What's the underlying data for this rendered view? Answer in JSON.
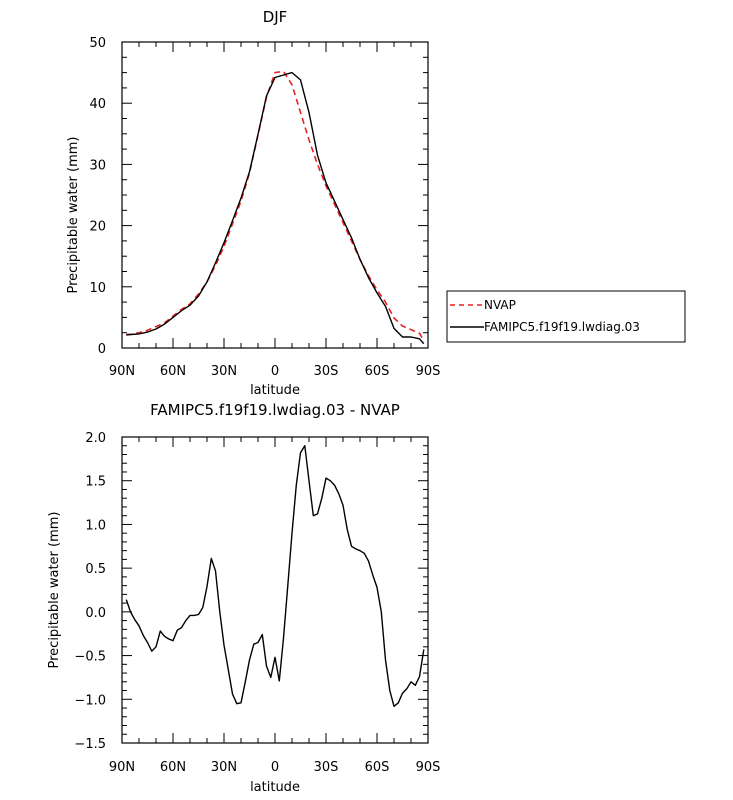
{
  "chart_data": [
    {
      "type": "line",
      "title": "DJF",
      "xlabel": "latitude",
      "ylabel": "Precipitable water (mm)",
      "xlim": [
        -90,
        90
      ],
      "ylim": [
        0,
        50
      ],
      "x_tick_labels": [
        "90N",
        "60N",
        "30N",
        "0",
        "30S",
        "60S",
        "90S"
      ],
      "y_tick_labels": [
        "0",
        "10",
        "20",
        "30",
        "40",
        "50"
      ],
      "legend": "right",
      "series": [
        {
          "name": "NVAP",
          "color": "#e8201f",
          "style": "dashed",
          "x": [
            -87.5,
            -85,
            -80,
            -75,
            -70,
            -65,
            -60,
            -55,
            -50,
            -45,
            -40,
            -35,
            -30,
            -25,
            -20,
            -15,
            -10,
            -5,
            0,
            5,
            10,
            15,
            20,
            25,
            30,
            35,
            40,
            45,
            50,
            55,
            60,
            65,
            70,
            75,
            80,
            85,
            87.5
          ],
          "y": [
            2.1,
            2.2,
            2.5,
            2.9,
            3.5,
            4.1,
            5.2,
            6.3,
            7.2,
            8.8,
            10.8,
            13.5,
            16.6,
            20.3,
            24.0,
            28.6,
            34.8,
            41.0,
            45.0,
            45.2,
            43.0,
            38.5,
            34.0,
            30.0,
            26.5,
            23.5,
            20.5,
            17.5,
            14.5,
            11.8,
            9.5,
            7.5,
            4.9,
            3.6,
            3.0,
            2.4,
            1.2
          ]
        },
        {
          "name": "FAMIPC5.f19f19.lwdiag.03",
          "color": "#000000",
          "style": "solid",
          "x": [
            -87.5,
            -85,
            -80,
            -75,
            -70,
            -65,
            -60,
            -55,
            -50,
            -45,
            -40,
            -35,
            -30,
            -25,
            -20,
            -15,
            -10,
            -5,
            0,
            5,
            10,
            15,
            20,
            25,
            30,
            35,
            40,
            45,
            50,
            55,
            60,
            65,
            70,
            75,
            80,
            85,
            87.5
          ],
          "y": [
            2.2,
            2.2,
            2.3,
            2.6,
            3.1,
            3.9,
            5.0,
            6.1,
            7.0,
            8.5,
            10.8,
            13.9,
            17.2,
            20.8,
            24.5,
            28.8,
            34.9,
            41.2,
            44.2,
            44.6,
            45.0,
            43.8,
            38.5,
            31.5,
            27.0,
            24.0,
            21.0,
            18.0,
            14.5,
            11.5,
            9.0,
            6.8,
            3.2,
            1.8,
            1.8,
            1.5,
            0.7
          ]
        }
      ]
    },
    {
      "type": "line",
      "title": "FAMIPC5.f19f19.lwdiag.03 - NVAP",
      "xlabel": "latitude",
      "ylabel": "Precipitable water (mm)",
      "xlim": [
        -90,
        90
      ],
      "ylim": [
        -1.5,
        2.0
      ],
      "x_tick_labels": [
        "90N",
        "60N",
        "30N",
        "0",
        "30S",
        "60S",
        "90S"
      ],
      "y_tick_labels": [
        "−1.5",
        "−1.0",
        "−0.5",
        "0.0",
        "0.5",
        "1.0",
        "1.5",
        "2.0"
      ],
      "series": [
        {
          "color": "#000000",
          "x": [
            -87.5,
            -85,
            -82.5,
            -80,
            -77.5,
            -75,
            -72.5,
            -70,
            -67.5,
            -65,
            -62.5,
            -60,
            -57.5,
            -55,
            -52.5,
            -50,
            -47.5,
            -45,
            -42.5,
            -40,
            -37.5,
            -35,
            -32.5,
            -30,
            -27.5,
            -25,
            -22.5,
            -20,
            -17.5,
            -15,
            -12.5,
            -10,
            -7.5,
            -5,
            -2.5,
            0,
            2.5,
            5,
            7.5,
            10,
            12.5,
            15,
            17.5,
            20,
            22.5,
            25,
            27.5,
            30,
            32.5,
            35,
            37.5,
            40,
            42.5,
            45,
            47.5,
            50,
            52.5,
            55,
            57.5,
            60,
            62.5,
            65,
            67.5,
            70,
            72.5,
            75,
            77.5,
            80,
            82.5,
            85,
            87.5
          ],
          "y": [
            0.14,
            0.0,
            -0.09,
            -0.16,
            -0.27,
            -0.35,
            -0.45,
            -0.4,
            -0.22,
            -0.28,
            -0.31,
            -0.33,
            -0.21,
            -0.18,
            -0.1,
            -0.04,
            -0.04,
            -0.03,
            0.05,
            0.29,
            0.61,
            0.47,
            0.0,
            -0.38,
            -0.66,
            -0.94,
            -1.05,
            -1.04,
            -0.8,
            -0.55,
            -0.37,
            -0.35,
            -0.26,
            -0.62,
            -0.75,
            -0.52,
            -0.79,
            -0.3,
            0.3,
            0.9,
            1.45,
            1.82,
            1.9,
            1.5,
            1.1,
            1.12,
            1.3,
            1.53,
            1.5,
            1.45,
            1.35,
            1.22,
            0.94,
            0.75,
            0.72,
            0.7,
            0.67,
            0.58,
            0.42,
            0.28,
            0.0,
            -0.55,
            -0.9,
            -1.08,
            -1.04,
            -0.93,
            -0.88,
            -0.8,
            -0.84,
            -0.74,
            -0.43
          ]
        }
      ]
    }
  ]
}
